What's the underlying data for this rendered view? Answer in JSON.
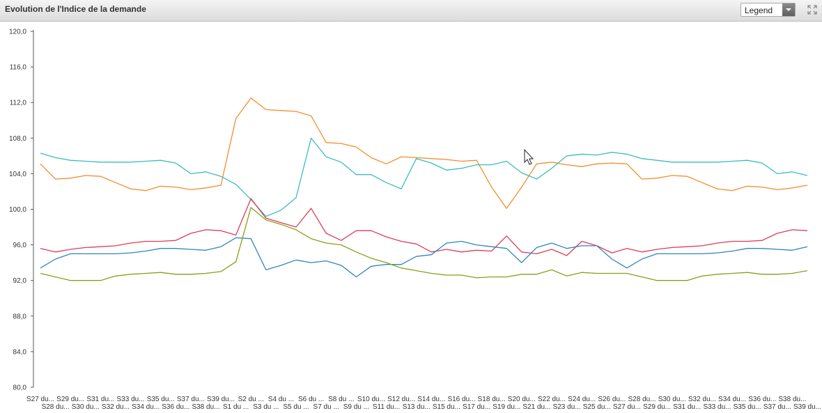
{
  "header": {
    "title": "Evolution de l'Indice de la demande",
    "legend_label": "Legend"
  },
  "icons": {
    "legend_dropdown": "chevron-down-icon",
    "expand": "expand-icon",
    "cursor": "mouse-pointer-icon"
  },
  "chart_data": {
    "type": "line",
    "title": "Evolution de l'Indice de la demande",
    "xlabel": "",
    "ylabel": "",
    "ylim": [
      80,
      120
    ],
    "yticks": [
      80,
      84,
      88,
      92,
      96,
      100,
      104,
      108,
      112,
      116,
      120
    ],
    "ytick_labels": [
      "80,0",
      "84,0",
      "88,0",
      "92,0",
      "96,0",
      "100,0",
      "104,0",
      "108,0",
      "112,0",
      "116,0",
      "120,0"
    ],
    "grid": false,
    "legend": "hidden",
    "categories": [
      "S27 du...",
      "S28 du...",
      "S29 du...",
      "S30 du...",
      "S31 du...",
      "S32 du...",
      "S33 du...",
      "S34 du...",
      "S35 du...",
      "S36 du...",
      "S37 du...",
      "S38 du...",
      "S39 du...",
      "S1 du ...",
      "S2 du ...",
      "S3 du ...",
      "S4 du ...",
      "S5 du ...",
      "S6 du ...",
      "S7 du ...",
      "S8 du ...",
      "S9 du ...",
      "S10 du...",
      "S11 du...",
      "S12 du...",
      "S13 du...",
      "S14 du...",
      "S15 du...",
      "S16 du...",
      "S17 du...",
      "S18 du...",
      "S19 du...",
      "S20 du...",
      "S21 du...",
      "S22 du...",
      "S23 du...",
      "S24 du...",
      "S25 du...",
      "S26 du...",
      "S27 du...",
      "S28 du...",
      "S29 du...",
      "S30 du...",
      "S31 du...",
      "S32 du...",
      "S33 du...",
      "S34 du...",
      "S35 du...",
      "S36 du...",
      "S37 du...",
      "S38 du...",
      "S39 du..."
    ],
    "series": [
      {
        "color": "#f28e2b",
        "values": [
          105.1,
          103.4,
          103.5,
          103.8,
          103.7,
          103.0,
          102.3,
          102.1,
          102.6,
          102.5,
          102.2,
          102.4,
          102.7,
          110.2,
          112.5,
          111.2,
          111.1,
          111.0,
          110.5,
          107.5,
          107.4,
          107.0,
          105.8,
          105.1,
          105.9,
          105.8,
          105.7,
          105.6,
          105.4,
          105.5,
          102.5,
          100.1,
          102.5,
          105.1,
          105.3,
          105.0,
          104.8,
          105.1,
          105.2,
          105.1,
          103.4,
          103.5,
          103.8,
          103.7,
          103.0,
          102.3,
          102.1,
          102.6,
          102.5,
          102.2,
          102.4,
          102.7
        ]
      },
      {
        "color": "#3cbcc0",
        "values": [
          106.3,
          105.8,
          105.5,
          105.4,
          105.3,
          105.3,
          105.3,
          105.4,
          105.5,
          105.2,
          104.0,
          104.2,
          103.7,
          102.8,
          101.1,
          99.2,
          99.9,
          101.3,
          108.0,
          105.9,
          105.3,
          103.9,
          103.9,
          103.0,
          102.3,
          105.7,
          105.2,
          104.4,
          104.6,
          105.0,
          105.0,
          105.4,
          104.1,
          103.4,
          104.6,
          106.0,
          106.2,
          106.1,
          106.4,
          106.2,
          105.7,
          105.5,
          105.3,
          105.3,
          105.3,
          105.3,
          105.4,
          105.5,
          105.2,
          104.0,
          104.2,
          103.8
        ]
      },
      {
        "color": "#dc3c5a",
        "values": [
          95.6,
          95.2,
          95.5,
          95.7,
          95.8,
          95.9,
          96.2,
          96.4,
          96.4,
          96.5,
          97.3,
          97.7,
          97.6,
          97.1,
          101.2,
          99.0,
          98.5,
          98.0,
          100.1,
          97.3,
          96.5,
          97.6,
          97.6,
          96.9,
          96.4,
          96.1,
          95.2,
          95.5,
          95.2,
          95.4,
          95.3,
          97.0,
          95.2,
          95.0,
          95.5,
          94.8,
          96.4,
          95.9,
          95.1,
          95.6,
          95.2,
          95.5,
          95.7,
          95.8,
          95.9,
          96.2,
          96.4,
          96.4,
          96.5,
          97.3,
          97.7,
          97.6
        ]
      },
      {
        "color": "#2f86bd",
        "values": [
          93.4,
          94.4,
          95.0,
          95.0,
          95.0,
          95.0,
          95.1,
          95.3,
          95.6,
          95.6,
          95.5,
          95.4,
          95.8,
          96.8,
          96.7,
          93.2,
          93.7,
          94.3,
          94.0,
          94.2,
          93.7,
          92.4,
          93.6,
          93.8,
          93.8,
          94.7,
          94.9,
          96.2,
          96.4,
          96.0,
          95.8,
          95.6,
          94.0,
          95.7,
          96.2,
          95.6,
          95.9,
          95.9,
          94.4,
          93.4,
          94.4,
          95.0,
          95.0,
          95.0,
          95.0,
          95.1,
          95.3,
          95.6,
          95.6,
          95.5,
          95.4,
          95.8
        ]
      },
      {
        "color": "#8a9e1a",
        "values": [
          92.8,
          92.4,
          92.0,
          92.0,
          92.0,
          92.5,
          92.7,
          92.8,
          92.9,
          92.7,
          92.7,
          92.8,
          93.0,
          94.1,
          100.2,
          98.8,
          98.3,
          97.7,
          96.7,
          96.2,
          96.0,
          95.2,
          94.5,
          94.0,
          93.4,
          93.1,
          92.8,
          92.6,
          92.6,
          92.3,
          92.4,
          92.4,
          92.7,
          92.7,
          93.2,
          92.5,
          92.9,
          92.8,
          92.8,
          92.8,
          92.4,
          92.0,
          92.0,
          92.0,
          92.5,
          92.7,
          92.8,
          92.9,
          92.7,
          92.7,
          92.8,
          93.1
        ]
      }
    ]
  }
}
